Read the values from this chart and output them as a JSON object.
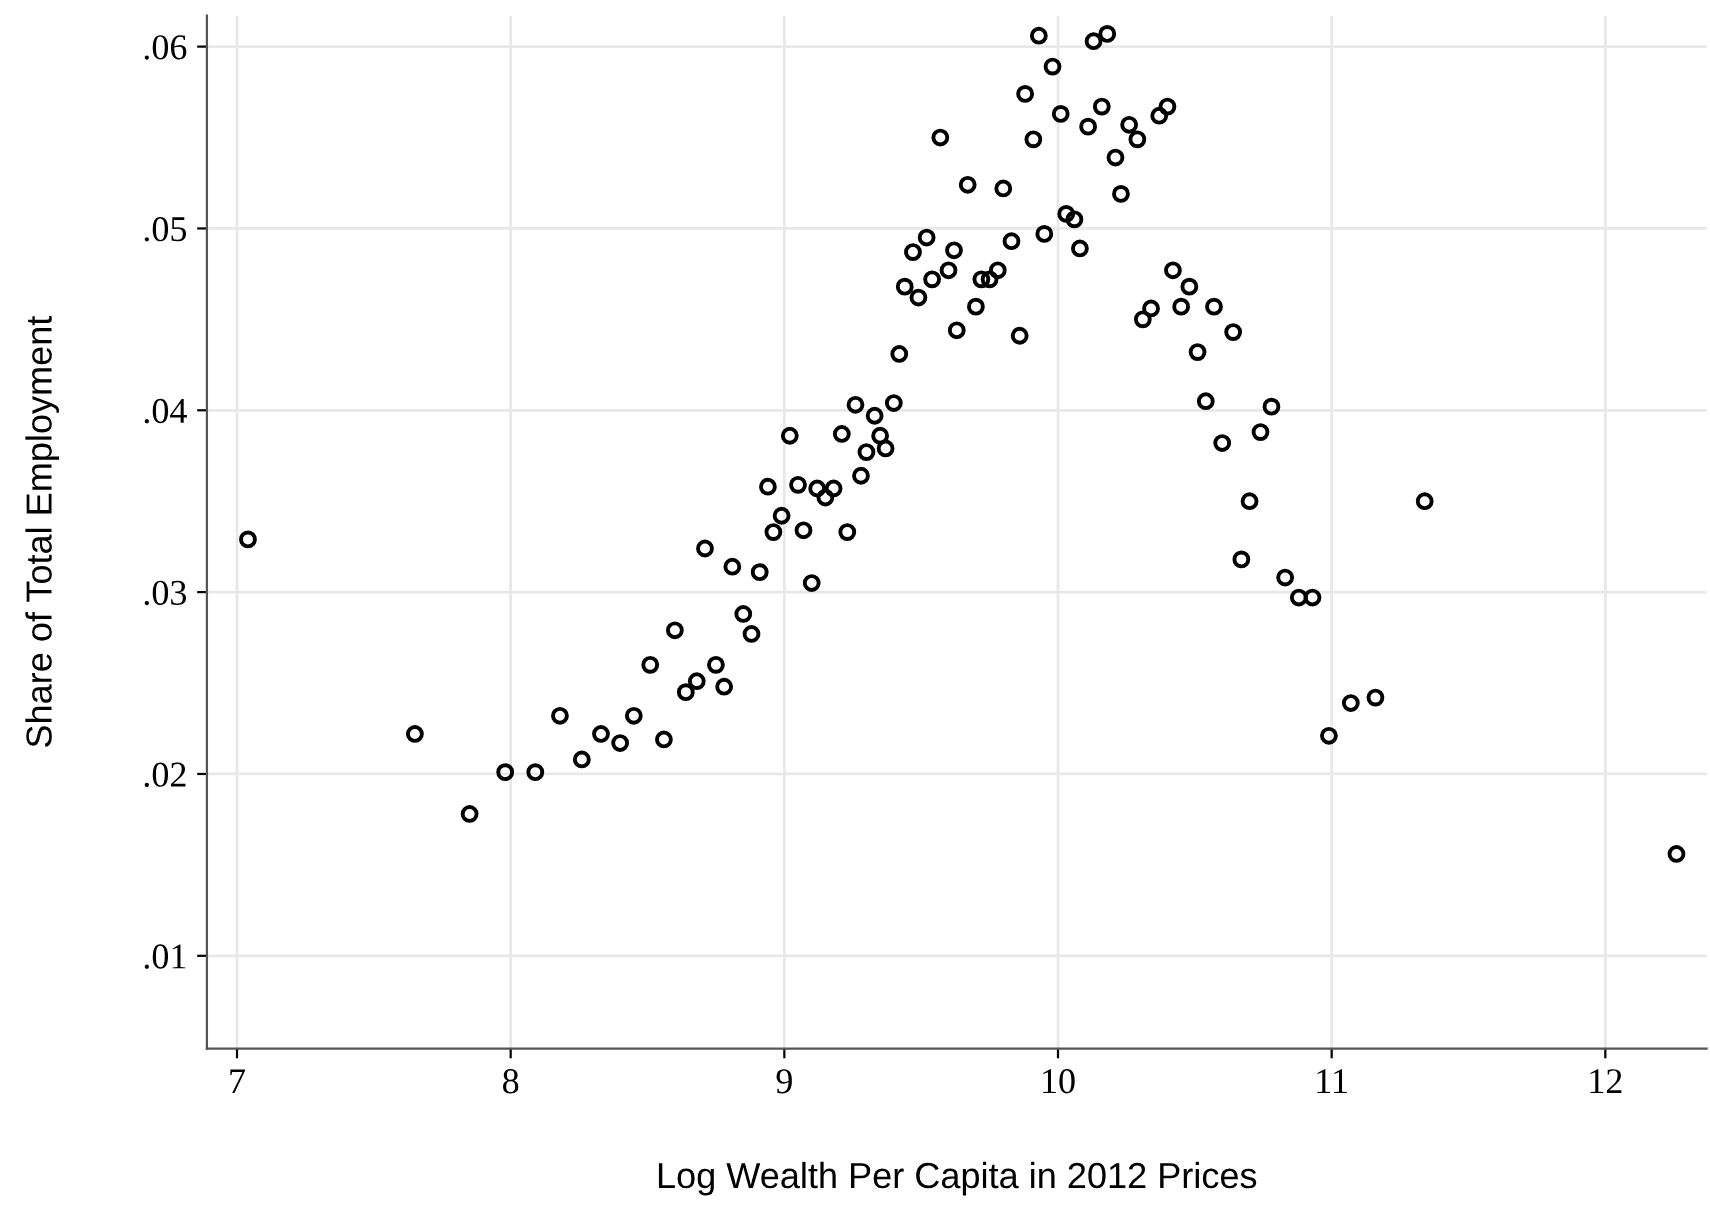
{
  "chart_data": {
    "type": "scatter",
    "xlabel": "Log Wealth Per Capita in 2012 Prices",
    "ylabel": "Share of Total Employment",
    "xlim": [
      6.89,
      12.37
    ],
    "ylim": [
      0.0049,
      0.0617
    ],
    "xticks": [
      7,
      8,
      9,
      10,
      11,
      12
    ],
    "yticks": [
      {
        "value": 0.01,
        "label": ".01"
      },
      {
        "value": 0.02,
        "label": ".02"
      },
      {
        "value": 0.03,
        "label": ".03"
      },
      {
        "value": 0.04,
        "label": ".04"
      },
      {
        "value": 0.05,
        "label": ".05"
      },
      {
        "value": 0.06,
        "label": ".06"
      }
    ],
    "grid": true,
    "marker": "circle",
    "series": [
      {
        "color": "#000000",
        "x": [
          7.04,
          7.65,
          7.85,
          7.98,
          8.09,
          8.18,
          8.26,
          8.33,
          8.4,
          8.45,
          8.51,
          8.56,
          8.6,
          8.64,
          8.68,
          8.71,
          8.75,
          8.78,
          8.81,
          8.85,
          8.88,
          8.91,
          8.94,
          8.96,
          8.99,
          9.02,
          9.05,
          9.07,
          9.1,
          9.12,
          9.15,
          9.18,
          9.21,
          9.23,
          9.26,
          9.28,
          9.3,
          9.33,
          9.35,
          9.37,
          9.4,
          9.42,
          9.44,
          9.47,
          9.49,
          9.52,
          9.54,
          9.57,
          9.6,
          9.62,
          9.63,
          9.67,
          9.7,
          9.72,
          9.75,
          9.78,
          9.8,
          9.83,
          9.86,
          9.88,
          9.91,
          9.93,
          9.95,
          9.98,
          10.01,
          10.03,
          10.06,
          10.08,
          10.11,
          10.13,
          10.16,
          10.18,
          10.21,
          10.23,
          10.26,
          10.29,
          10.31,
          10.34,
          10.37,
          10.4,
          10.42,
          10.45,
          10.48,
          10.51,
          10.54,
          10.57,
          10.6,
          10.64,
          10.67,
          10.7,
          10.74,
          10.78,
          10.83,
          10.88,
          10.93,
          10.99,
          11.07,
          11.16,
          11.34,
          12.26
        ],
        "values": [
          0.0329,
          0.0222,
          0.0178,
          0.0201,
          0.0201,
          0.0232,
          0.0208,
          0.0222,
          0.0217,
          0.0232,
          0.026,
          0.0219,
          0.0279,
          0.0245,
          0.0251,
          0.0324,
          0.026,
          0.0248,
          0.0314,
          0.0288,
          0.0277,
          0.0311,
          0.0358,
          0.0333,
          0.0342,
          0.0386,
          0.0359,
          0.0334,
          0.0305,
          0.0357,
          0.0352,
          0.0357,
          0.0387,
          0.0333,
          0.0403,
          0.0364,
          0.0377,
          0.0397,
          0.0386,
          0.0379,
          0.0404,
          0.0431,
          0.0468,
          0.0487,
          0.0462,
          0.0495,
          0.0472,
          0.055,
          0.0477,
          0.0488,
          0.0444,
          0.0524,
          0.0457,
          0.0472,
          0.0472,
          0.0477,
          0.0522,
          0.0493,
          0.0441,
          0.0574,
          0.0549,
          0.0606,
          0.0497,
          0.0589,
          0.0563,
          0.0508,
          0.0505,
          0.0489,
          0.0556,
          0.0603,
          0.0567,
          0.0607,
          0.0539,
          0.0519,
          0.0557,
          0.0549,
          0.045,
          0.0456,
          0.0562,
          0.0567,
          0.0477,
          0.0457,
          0.0468,
          0.0432,
          0.0405,
          0.0457,
          0.0382,
          0.0443,
          0.0318,
          0.035,
          0.0388,
          0.0402,
          0.0308,
          0.0297,
          0.0297,
          0.0221,
          0.0239,
          0.0242,
          0.035,
          0.0156
        ]
      }
    ]
  }
}
